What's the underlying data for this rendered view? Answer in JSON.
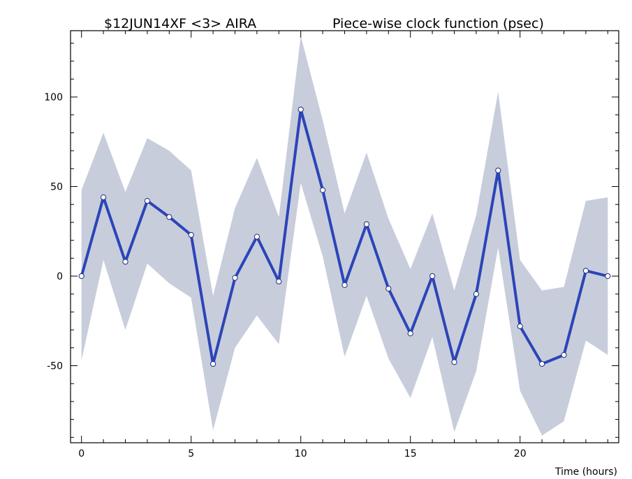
{
  "chart_data": {
    "type": "line",
    "title_left": "$12JUN14XF <3>  AIRA",
    "title_right": "Piece-wise clock function (psec)",
    "xlabel": "Time (hours)",
    "ylabel": "",
    "xlim": [
      -0.5,
      24.5
    ],
    "ylim": [
      -93,
      137
    ],
    "x_ticks": [
      0,
      5,
      10,
      15,
      20
    ],
    "y_ticks": [
      -50,
      0,
      50,
      100
    ],
    "colors": {
      "line": "#2b45b8",
      "band": "#c8cddc",
      "marker_fill": "#ffffff"
    },
    "series": [
      {
        "x": [
          0,
          1,
          2,
          3,
          4,
          5,
          6,
          7,
          8,
          9,
          10,
          11,
          12,
          13,
          14,
          15,
          16,
          17,
          18,
          19,
          20,
          21,
          22,
          23,
          24
        ],
        "values": [
          0,
          44,
          8,
          42,
          33,
          23,
          -49,
          -1,
          22,
          -3,
          93,
          48,
          -5,
          29,
          -7,
          -32,
          0,
          -48,
          -10,
          59,
          -28,
          -49,
          -44,
          3,
          0
        ],
        "upper": [
          48,
          80,
          47,
          77,
          70,
          59,
          -11,
          38,
          66,
          33,
          134,
          87,
          35,
          69,
          32,
          4,
          35,
          -8,
          34,
          103,
          9,
          -8,
          -6,
          42,
          44
        ],
        "lower": [
          -47,
          9,
          -30,
          7,
          -4,
          -12,
          -86,
          -40,
          -22,
          -38,
          52,
          11,
          -45,
          -11,
          -46,
          -68,
          -34,
          -87,
          -53,
          16,
          -64,
          -89,
          -81,
          -36,
          -44
        ]
      }
    ]
  }
}
